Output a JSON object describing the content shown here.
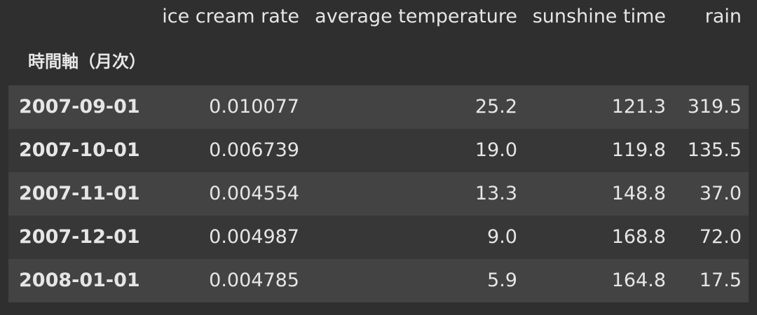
{
  "table": {
    "columns": [
      "ice cream rate",
      "average temperature",
      "sunshine time",
      "rain"
    ],
    "index_name": "時間軸（月次）",
    "rows": [
      {
        "index": "2007-09-01",
        "values": [
          "0.010077",
          "25.2",
          "121.3",
          "319.5"
        ]
      },
      {
        "index": "2007-10-01",
        "values": [
          "0.006739",
          "19.0",
          "119.8",
          "135.5"
        ]
      },
      {
        "index": "2007-11-01",
        "values": [
          "0.004554",
          "13.3",
          "148.8",
          "37.0"
        ]
      },
      {
        "index": "2007-12-01",
        "values": [
          "0.004987",
          "9.0",
          "168.8",
          "72.0"
        ]
      },
      {
        "index": "2008-01-01",
        "values": [
          "0.004785",
          "5.9",
          "164.8",
          "17.5"
        ]
      }
    ]
  }
}
